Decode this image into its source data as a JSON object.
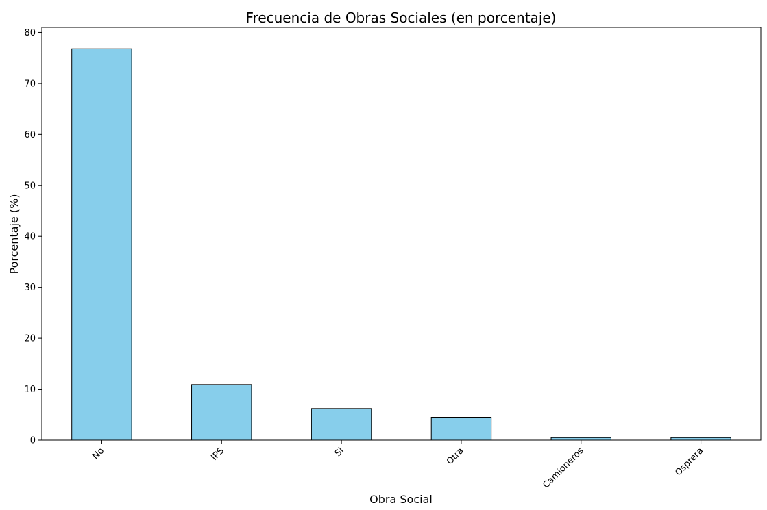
{
  "chart_data": {
    "type": "bar",
    "title": "Frecuencia de Obras Sociales (en porcentaje)",
    "xlabel": "Obra Social",
    "ylabel": "Porcentaje (%)",
    "categories": [
      "No",
      "IPS",
      "Si",
      "Otra",
      "Camioneros",
      "Osprera"
    ],
    "values": [
      76.8,
      10.9,
      6.2,
      4.5,
      0.5,
      0.5
    ],
    "ylim": [
      0,
      81
    ],
    "yticks": [
      "0",
      "10",
      "20",
      "30",
      "40",
      "50",
      "60",
      "70",
      "80"
    ],
    "grid": false,
    "legend": "none",
    "bar_color": "#87CEEB",
    "edge_color": "#000000"
  }
}
